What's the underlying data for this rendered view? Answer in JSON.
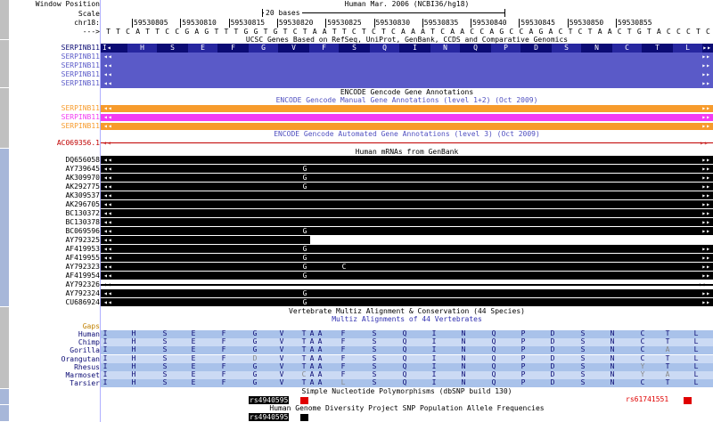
{
  "header": {
    "window_position_label": "Window Position",
    "scale_label": "Scale",
    "chrom_label": "chr18:",
    "strand_label": "--->",
    "assembly": "Human Mar. 2006 (NCBI36/hg18)",
    "scale_text": "20 bases",
    "positions": [
      "59530805",
      "59530810",
      "59530815",
      "59530820",
      "59530825",
      "59530830",
      "59530835",
      "59530840",
      "59530845",
      "59530850",
      "59530855"
    ],
    "sequence": "TTCATTCCGAGTTTGGTGTCTAATTCTCTCAAATCAACCAGCCAGACTCTAACTGTACCCTC"
  },
  "ucsc_genes": {
    "title": "UCSC Genes Based on RefSeq, UniProt, GenBank, CCDS and Comparative Genomics",
    "amino_acids": [
      "H",
      "S",
      "E",
      "F",
      "G",
      "V",
      "F",
      "S",
      "Q",
      "I",
      "N",
      "Q",
      "P",
      "D",
      "S",
      "N",
      "C",
      "T",
      "L"
    ],
    "tracks": [
      "SERPINB11",
      "SERPINB11",
      "SERPINB11",
      "SERPINB11",
      "SERPINB11"
    ],
    "color_main": "#0b0b74",
    "color_alt": "#5a5ac8"
  },
  "gencode": {
    "title": "ENCODE Gencode Gene Annotations",
    "manual_title": "ENCODE Gencode Manual Gene Annotations (level 1+2) (Oct 2009)",
    "manual_tracks": [
      {
        "name": "SERPINB11",
        "color": "#f79b2c"
      },
      {
        "name": "SERPINB11",
        "color": "#f23cf2"
      },
      {
        "name": "SERPINB11",
        "color": "#f79b2c"
      }
    ],
    "auto_title": "ENCODE Gencode Automated Gene Annotations (level 3) (Oct 2009)",
    "auto_track": {
      "name": "AC069356.1",
      "color": "#c00000"
    }
  },
  "mrna": {
    "title": "Human mRNAs from GenBank",
    "rows": [
      {
        "name": "DQ656058",
        "marks": []
      },
      {
        "name": "AY739645",
        "marks": [
          "G"
        ]
      },
      {
        "name": "AK309970",
        "marks": [
          "G"
        ]
      },
      {
        "name": "AK292775",
        "marks": [
          "G"
        ]
      },
      {
        "name": "AK309537",
        "marks": []
      },
      {
        "name": "AK296705",
        "marks": []
      },
      {
        "name": "BC130372",
        "marks": []
      },
      {
        "name": "BC130378",
        "marks": []
      },
      {
        "name": "BC069596",
        "marks": [
          "G"
        ]
      },
      {
        "name": "AY792325",
        "marks": []
      },
      {
        "name": "AF419953",
        "marks": [
          "G"
        ]
      },
      {
        "name": "AF419955",
        "marks": [
          "G"
        ]
      },
      {
        "name": "AY792323",
        "marks": [
          "G",
          "C"
        ]
      },
      {
        "name": "AF419954",
        "marks": [
          "G"
        ]
      },
      {
        "name": "AY792326",
        "marks": []
      },
      {
        "name": "AY792324",
        "marks": [
          "G"
        ]
      },
      {
        "name": "CU686924",
        "marks": [
          "G"
        ]
      }
    ]
  },
  "multiz": {
    "title": "Vertebrate Multiz Alignment & Conservation (44 Species)",
    "subtitle": "Multiz Alignments of 44 Vertebrates",
    "gaps_label": "Gaps",
    "species": [
      {
        "name": "Human",
        "seq": [
          "I",
          "H",
          "S",
          "E",
          "F",
          "G",
          "V",
          "T",
          "A",
          "A",
          "F",
          "S",
          "Q",
          "I",
          "N",
          "Q",
          "P",
          "D",
          "S",
          "N",
          "C",
          "T",
          "L"
        ]
      },
      {
        "name": "Chimp",
        "seq": [
          "I",
          "H",
          "S",
          "E",
          "F",
          "G",
          "V",
          "T",
          "A",
          "A",
          "F",
          "S",
          "Q",
          "I",
          "N",
          "Q",
          "P",
          "D",
          "S",
          "N",
          "C",
          "T",
          "L"
        ]
      },
      {
        "name": "Gorilla",
        "seq": [
          "I",
          "H",
          "S",
          "E",
          "F",
          "G",
          "V",
          "T",
          "A",
          "A",
          "F",
          "S",
          "Q",
          "I",
          "N",
          "Q",
          "P",
          "D",
          "S",
          "N",
          "C",
          "A",
          "L"
        ]
      },
      {
        "name": "Orangutan",
        "seq": [
          "I",
          "H",
          "S",
          "E",
          "F",
          "D",
          "V",
          "T",
          "A",
          "A",
          "F",
          "S",
          "Q",
          "I",
          "N",
          "Q",
          "P",
          "D",
          "S",
          "N",
          "C",
          "T",
          "L"
        ]
      },
      {
        "name": "Rhesus",
        "seq": [
          "I",
          "H",
          "S",
          "E",
          "F",
          "G",
          "V",
          "T",
          "A",
          "A",
          "F",
          "S",
          "Q",
          "I",
          "N",
          "Q",
          "P",
          "D",
          "S",
          "N",
          "Y",
          "T",
          "L"
        ]
      },
      {
        "name": "Marmoset",
        "seq": [
          "I",
          "H",
          "S",
          "E",
          "F",
          "G",
          "V",
          "C",
          "A",
          "A",
          "F",
          "S",
          "Q",
          "I",
          "N",
          "Q",
          "P",
          "D",
          "S",
          "N",
          "Y",
          "A",
          "L"
        ]
      },
      {
        "name": "Tarsier",
        "seq": [
          "I",
          "H",
          "S",
          "E",
          "F",
          "G",
          "V",
          "T",
          "A",
          "A",
          "L",
          "S",
          "Q",
          "I",
          "N",
          "Q",
          "P",
          "D",
          "S",
          "N",
          "C",
          "T",
          "L"
        ]
      }
    ]
  },
  "snp": {
    "title": "Simple Nucleotide Polymorphisms (dbSNP build 130)",
    "snp_left": "rs4940595",
    "snp_right": "rs61741551",
    "hgdp_title": "Human Genome Diversity Project SNP Population Allele Frequencies",
    "hgdp_snp": "rs4940595"
  }
}
